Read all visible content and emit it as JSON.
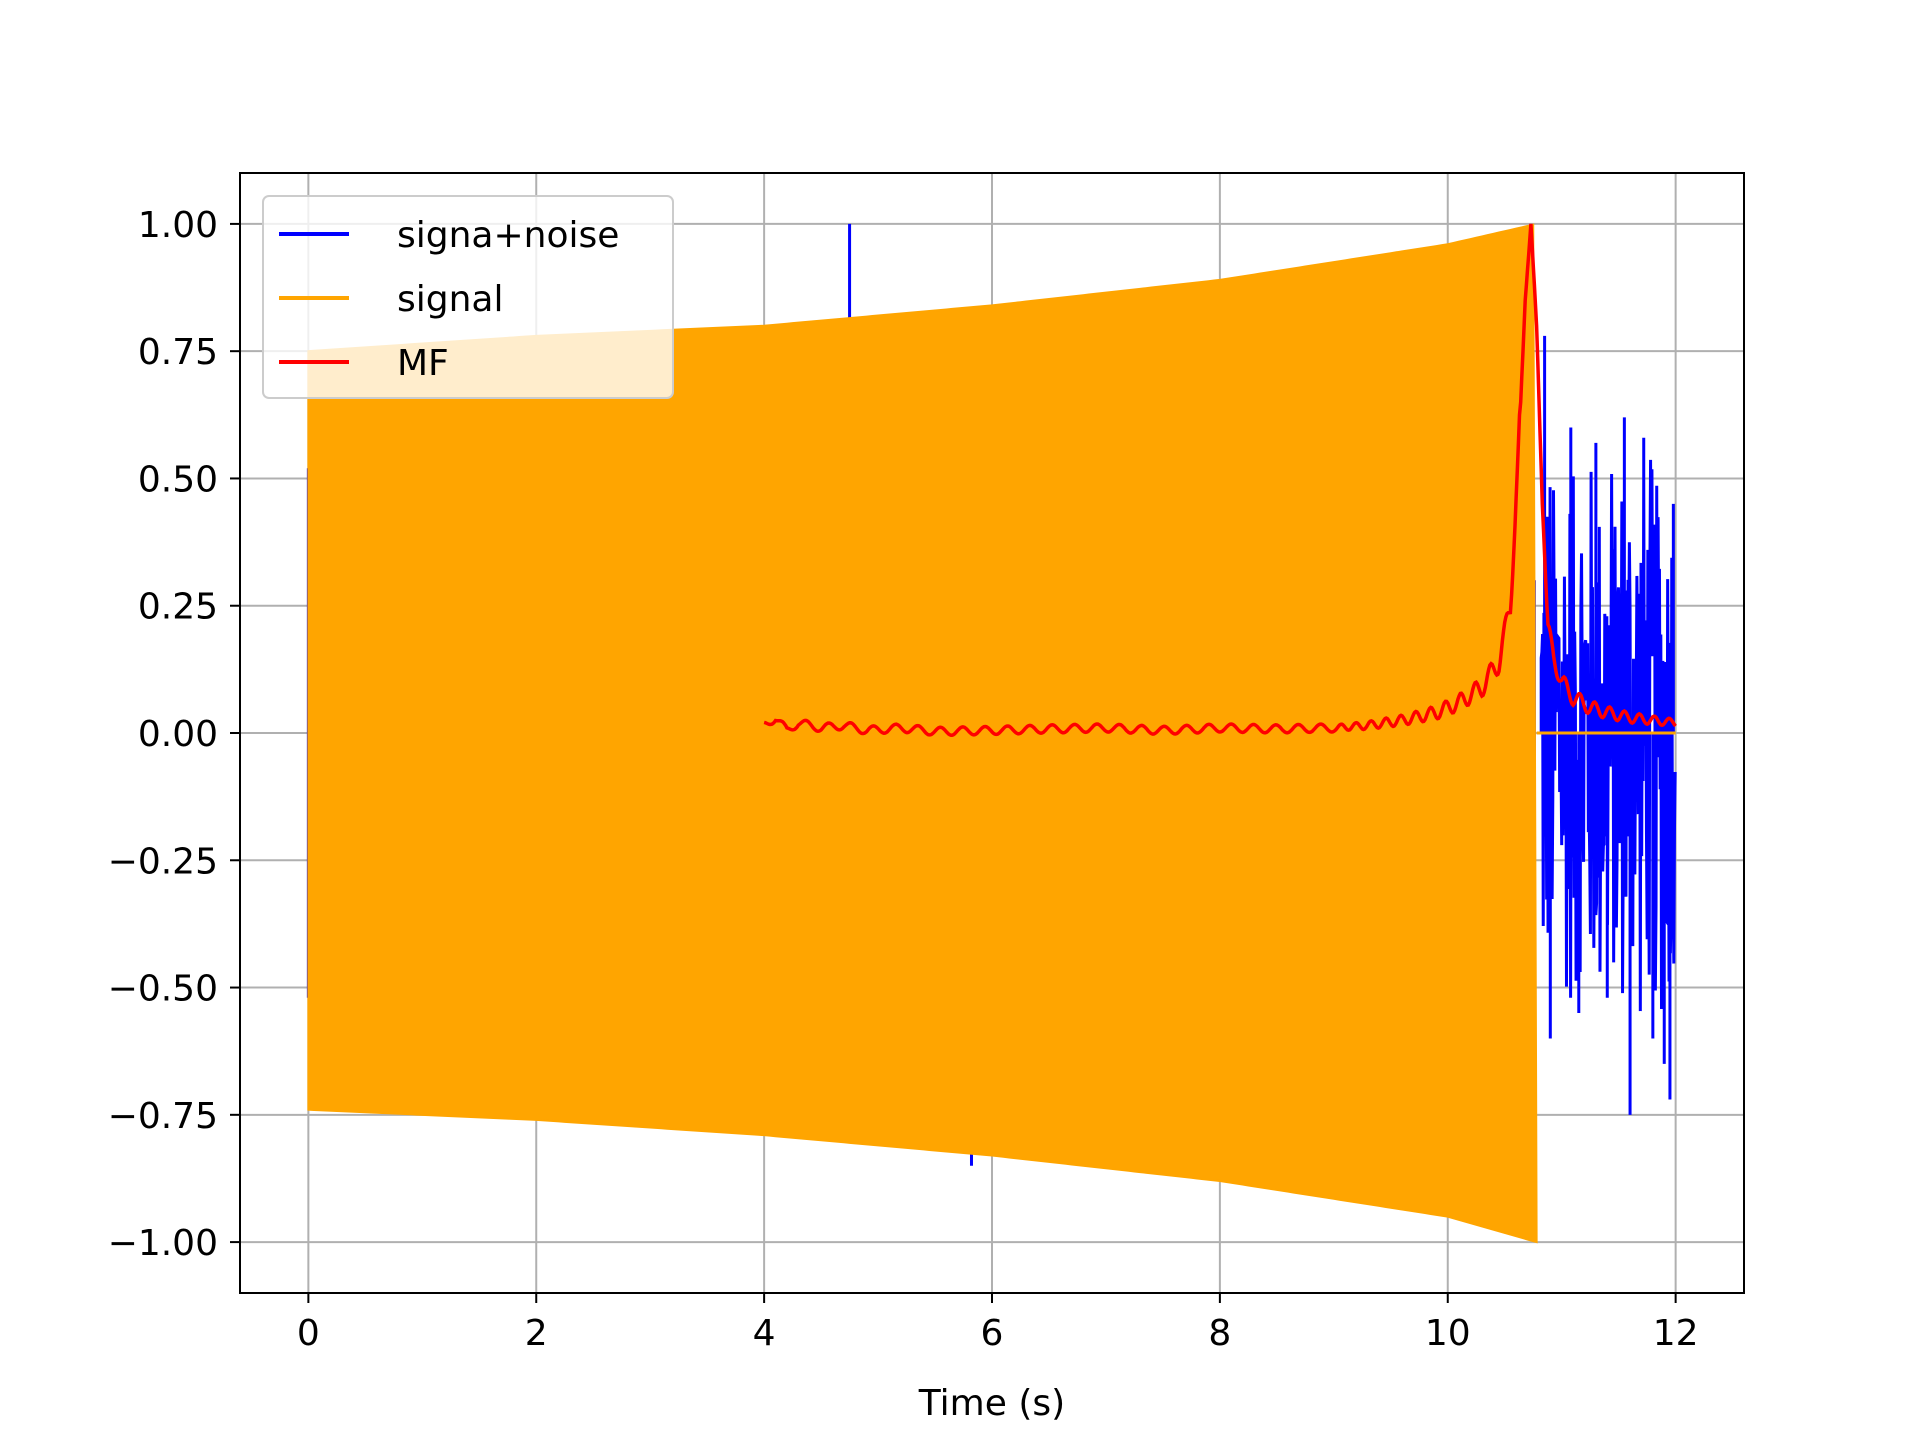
{
  "chart_data": {
    "type": "line",
    "title": "",
    "xlabel": "Time (s)",
    "ylabel": "",
    "xlim": [
      -0.6,
      12.6
    ],
    "ylim": [
      -1.1,
      1.1
    ],
    "grid": true,
    "legend_position": "top-left",
    "x_ticks": [
      0,
      2,
      4,
      6,
      8,
      10,
      12
    ],
    "x_tick_labels": [
      "0",
      "2",
      "4",
      "6",
      "8",
      "10",
      "12"
    ],
    "y_ticks": [
      1.0,
      0.75,
      0.5,
      0.25,
      0.0,
      -0.25,
      -0.5,
      -0.75,
      -1.0
    ],
    "y_tick_labels": [
      "1.00",
      "0.75",
      "0.50",
      "0.25",
      "0.00",
      "−0.25",
      "−0.50",
      "−0.75",
      "−1.00"
    ],
    "series": [
      {
        "name": "signa+noise",
        "color": "#0000ff",
        "description_points": {
          "x": [
            0,
            4.75,
            4.75,
            5.82,
            10.85,
            10.95,
            11.1,
            11.3,
            11.55,
            11.6,
            11.75,
            11.9,
            12.0
          ],
          "y": [
            0.5,
            1.0,
            0.81,
            -0.85,
            0.78,
            -0.6,
            0.55,
            -0.55,
            0.6,
            -0.75,
            0.55,
            -0.65,
            0.0
          ]
        }
      },
      {
        "name": "signal",
        "color": "#ffa500",
        "envelope": {
          "x": [
            0.0,
            2.0,
            4.0,
            6.0,
            8.0,
            10.0,
            10.78
          ],
          "upper": [
            0.75,
            0.78,
            0.8,
            0.84,
            0.89,
            0.96,
            1.0
          ],
          "lower": [
            -0.74,
            -0.76,
            -0.79,
            -0.83,
            -0.88,
            -0.95,
            -1.0
          ]
        },
        "after_end": 0.0
      },
      {
        "name": "MF",
        "color": "#ff0000",
        "x": [
          4.0,
          4.1,
          4.2,
          4.3,
          4.5,
          4.7,
          4.9,
          5.2,
          5.5,
          6.0,
          6.5,
          7.0,
          7.5,
          8.0,
          8.5,
          9.0,
          9.3,
          9.6,
          9.9,
          10.1,
          10.3,
          10.45,
          10.55,
          10.62,
          10.68,
          10.73,
          10.78,
          10.83,
          10.88,
          10.93,
          11.0,
          11.1,
          11.25,
          11.4,
          11.6,
          11.8,
          12.0
        ],
        "y": [
          0.015,
          0.03,
          0.005,
          0.02,
          0.01,
          0.015,
          0.005,
          0.01,
          0.003,
          0.005,
          0.008,
          0.01,
          0.005,
          0.01,
          0.008,
          0.01,
          0.015,
          0.025,
          0.04,
          0.06,
          0.09,
          0.14,
          0.25,
          0.55,
          0.85,
          1.0,
          0.8,
          0.45,
          0.2,
          0.15,
          0.1,
          0.07,
          0.05,
          0.04,
          0.03,
          0.025,
          0.02
        ]
      }
    ]
  }
}
